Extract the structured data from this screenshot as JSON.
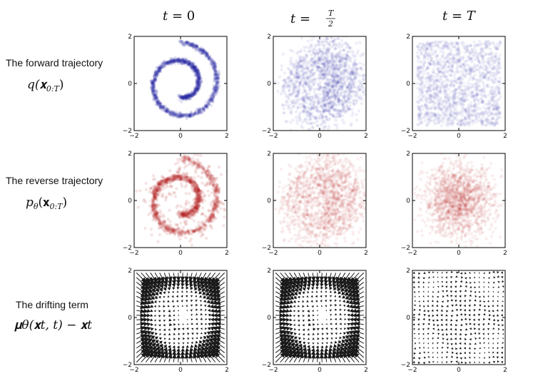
{
  "columns": [
    {
      "title_prefix": "t = ",
      "title_value": "0",
      "kind": "plain"
    },
    {
      "title_prefix": "t = ",
      "title_num": "T",
      "title_den": "2",
      "kind": "fraction"
    },
    {
      "title_prefix": "t = ",
      "title_value": "T",
      "kind": "plain"
    }
  ],
  "rows": [
    {
      "title": "The forward trajectory",
      "formula_main": "q(𝐱",
      "formula_sub": "0:T",
      "formula_tail": ")"
    },
    {
      "title": "The reverse trajectory",
      "formula_main": "p",
      "formula_theta": "θ",
      "formula_paren": "(𝐱",
      "formula_sub": "0:T",
      "formula_tail": ")"
    },
    {
      "title": "The drifting term",
      "formula_text": "𝛍θ(𝐱t, t) − 𝐱t"
    }
  ],
  "colors": {
    "forward": "#2a2aa8",
    "reverse": "#b22222",
    "arrow": "#1a1a1a"
  },
  "chart_data": [
    {
      "type": "scatter",
      "row": "forward",
      "column": "t = 0",
      "description": "Swiss-roll spiral points",
      "spread": 0.05,
      "opacity": 0.12,
      "xlim": [
        -2,
        2
      ],
      "ylim": [
        -2,
        2
      ],
      "xticks": [
        "−2",
        "0",
        "2"
      ],
      "yticks": [
        "2",
        "0",
        "−2"
      ]
    },
    {
      "type": "scatter",
      "row": "forward",
      "column": "t = T/2",
      "spread": 0.4,
      "opacity": 0.08,
      "xlim": [
        -2,
        2
      ],
      "ylim": [
        -2,
        2
      ],
      "xticks": [
        "−2",
        "0",
        "2"
      ],
      "yticks": [
        "2",
        "0",
        "−2"
      ]
    },
    {
      "type": "scatter",
      "row": "forward",
      "column": "t = T",
      "spread": "uniform",
      "opacity": 0.07,
      "xlim": [
        -2,
        2
      ],
      "ylim": [
        -2,
        2
      ],
      "xticks": [
        "−2",
        "0",
        "2"
      ],
      "yticks": [
        "2",
        "0",
        "−2"
      ]
    },
    {
      "type": "scatter",
      "row": "reverse",
      "column": "t = 0",
      "spread": 0.07,
      "opacity": 0.12,
      "xlim": [
        -2,
        2
      ],
      "ylim": [
        -2,
        2
      ],
      "xticks": [
        "−2",
        "0",
        "2"
      ],
      "yticks": [
        "2",
        "0",
        "−2"
      ]
    },
    {
      "type": "scatter",
      "row": "reverse",
      "column": "t = T/2",
      "spread": 0.45,
      "opacity": 0.07,
      "xlim": [
        -2,
        2
      ],
      "ylim": [
        -2,
        2
      ],
      "xticks": [
        "−2",
        "0",
        "2"
      ],
      "yticks": [
        "2",
        "0",
        "−2"
      ]
    },
    {
      "type": "scatter",
      "row": "reverse",
      "column": "t = T",
      "spread": "gaussian",
      "opacity": 0.07,
      "xlim": [
        -2,
        2
      ],
      "ylim": [
        -2,
        2
      ],
      "xticks": [
        "−2",
        "0",
        "2"
      ],
      "yticks": [
        "2",
        "0",
        "−2"
      ]
    },
    {
      "type": "quiver",
      "row": "drift",
      "column": "t = 0",
      "grid": 20,
      "strength": 1.0,
      "xlim": [
        -2,
        2
      ],
      "ylim": [
        -2,
        2
      ],
      "xticks": [
        "−2",
        "0",
        "2"
      ],
      "yticks": [
        "2",
        "0",
        "−2"
      ]
    },
    {
      "type": "quiver",
      "row": "drift",
      "column": "t = T/2",
      "grid": 20,
      "strength": 1.0,
      "xlim": [
        -2,
        2
      ],
      "ylim": [
        -2,
        2
      ],
      "xticks": [
        "−2",
        "0",
        "2"
      ],
      "yticks": [
        "2",
        "0",
        "−2"
      ]
    },
    {
      "type": "quiver",
      "row": "drift",
      "column": "t = T",
      "grid": 20,
      "strength": 0.22,
      "xlim": [
        -2,
        2
      ],
      "ylim": [
        -2,
        2
      ],
      "xticks": [
        "−2",
        "0",
        "2"
      ],
      "yticks": [
        "2",
        "0",
        "−2"
      ]
    }
  ]
}
